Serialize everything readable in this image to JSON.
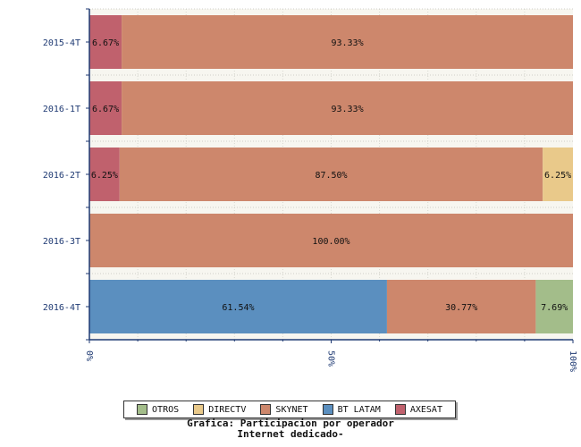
{
  "chart_data": {
    "type": "bar",
    "orientation": "horizontal",
    "stacked": true,
    "categories": [
      "2015-4T",
      "2016-1T",
      "2016-2T",
      "2016-3T",
      "2016-4T"
    ],
    "series": [
      {
        "name": "BT LATAM",
        "color": "#5b8fbf",
        "values": [
          0,
          0,
          0,
          0,
          61.54
        ],
        "labels": [
          "",
          "",
          "",
          "",
          "61.54%"
        ]
      },
      {
        "name": "AXESAT",
        "color": "#c0616d",
        "values": [
          6.67,
          6.67,
          6.25,
          0,
          0
        ],
        "labels": [
          "6.67%",
          "6.67%",
          "6.25%",
          "",
          ""
        ]
      },
      {
        "name": "SKYNET",
        "color": "#cd876c",
        "values": [
          93.33,
          93.33,
          87.5,
          100,
          30.77
        ],
        "labels": [
          "93.33%",
          "93.33%",
          "87.50%",
          "100.00%",
          "30.77%"
        ]
      },
      {
        "name": "DIRECTV",
        "color": "#e9c98a",
        "values": [
          0,
          0,
          6.25,
          0,
          0
        ],
        "labels": [
          "",
          "",
          "6.25%",
          "",
          ""
        ]
      },
      {
        "name": "OTROS",
        "color": "#a3bd8a",
        "values": [
          0,
          0,
          0,
          0,
          7.69
        ],
        "labels": [
          "",
          "",
          "",
          "",
          "7.69%"
        ]
      }
    ],
    "x_ticks": [
      "0%",
      "50%",
      "100%"
    ],
    "xlim": [
      0,
      100
    ],
    "legend_position": "bottom",
    "grid": true
  },
  "legend": [
    {
      "name": "OTROS",
      "color": "#a3bd8a"
    },
    {
      "name": "DIRECTV",
      "color": "#e9c98a"
    },
    {
      "name": "SKYNET",
      "color": "#cd876c"
    },
    {
      "name": "BT LATAM",
      "color": "#5b8fbf"
    },
    {
      "name": "AXESAT",
      "color": "#c0616d"
    }
  ],
  "caption": {
    "line1": "Grafica: Participacion por operador",
    "line2": "Internet dedicado-"
  }
}
